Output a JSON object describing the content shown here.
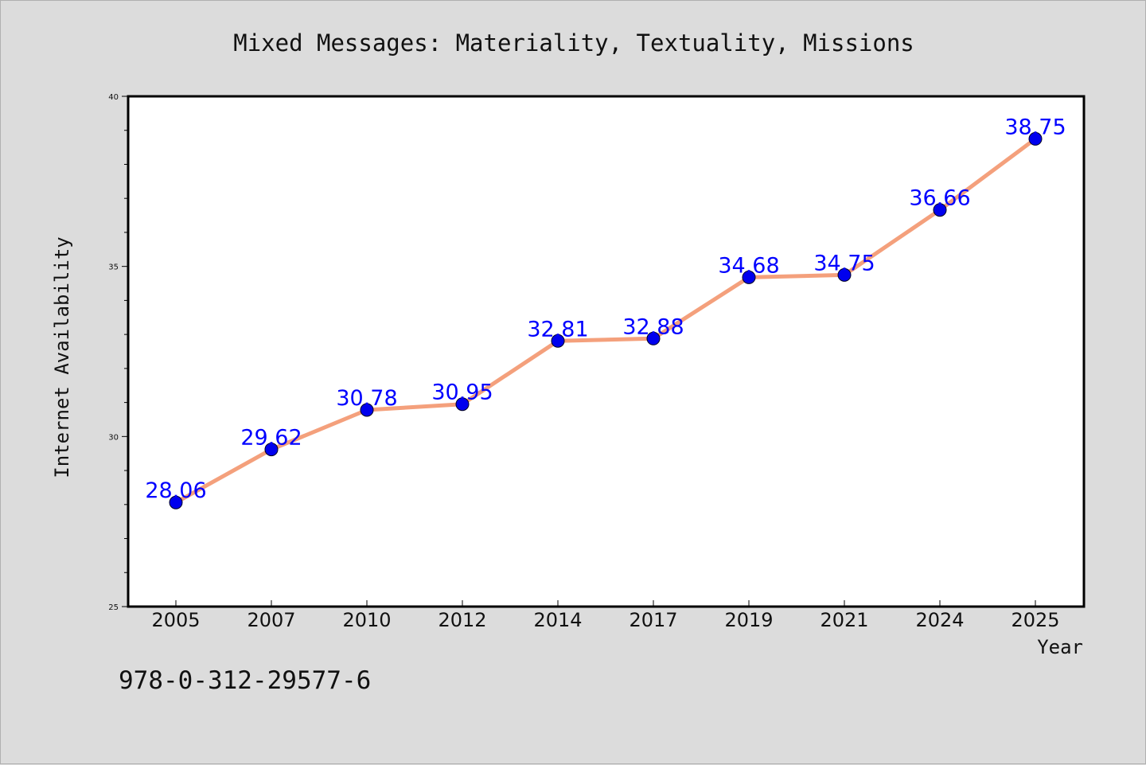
{
  "chart_data": {
    "type": "line",
    "title": "Mixed Messages: Materiality, Textuality, Missions",
    "xlabel": "Year",
    "ylabel": "Internet Availability",
    "categories": [
      "2005",
      "2007",
      "2010",
      "2012",
      "2014",
      "2017",
      "2019",
      "2021",
      "2024",
      "2025"
    ],
    "values": [
      28.06,
      29.62,
      30.78,
      30.95,
      32.81,
      32.88,
      34.68,
      34.75,
      36.66,
      38.75
    ],
    "data_labels": [
      "28.06",
      "29.62",
      "30.78",
      "30.95",
      "32.81",
      "32.88",
      "34.68",
      "34.75",
      "36.66",
      "38.75"
    ],
    "ylim": [
      25,
      40
    ],
    "yticks": [
      25,
      30,
      35,
      40
    ],
    "grid": false,
    "line_color": "#f4a07c",
    "marker_color": "#0000ee",
    "label_color": "#0000ff"
  },
  "footer": {
    "isbn": "978-0-312-29577-6"
  }
}
